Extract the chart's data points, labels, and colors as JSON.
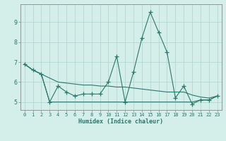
{
  "xlabel": "Humidex (Indice chaleur)",
  "x": [
    0,
    1,
    2,
    3,
    4,
    5,
    6,
    7,
    8,
    9,
    10,
    11,
    12,
    13,
    14,
    15,
    16,
    17,
    18,
    19,
    20,
    21,
    22,
    23
  ],
  "line1": [
    6.9,
    6.6,
    6.4,
    5.0,
    5.8,
    5.5,
    5.3,
    5.4,
    5.4,
    5.4,
    6.0,
    7.3,
    5.0,
    6.5,
    8.2,
    9.5,
    8.5,
    7.5,
    5.2,
    5.8,
    4.9,
    5.1,
    5.1,
    5.3
  ],
  "line2": [
    6.9,
    6.6,
    6.4,
    5.0,
    5.0,
    5.0,
    5.0,
    5.0,
    5.0,
    5.0,
    5.0,
    5.0,
    5.0,
    5.0,
    5.0,
    5.0,
    5.0,
    5.0,
    5.0,
    5.0,
    5.0,
    5.1,
    5.1,
    5.3
  ],
  "line3": [
    6.9,
    6.6,
    6.4,
    6.2,
    6.0,
    5.95,
    5.9,
    5.85,
    5.85,
    5.8,
    5.8,
    5.75,
    5.75,
    5.7,
    5.65,
    5.6,
    5.55,
    5.5,
    5.5,
    5.5,
    5.35,
    5.25,
    5.2,
    5.3
  ],
  "ylim": [
    4.6,
    9.9
  ],
  "yticks": [
    5,
    6,
    7,
    8,
    9
  ],
  "line_color": "#2a7a6a",
  "bg_color": "#d4eeea",
  "grid_color": "#aed4cc",
  "marker": "+",
  "markersize": 4,
  "lw": 0.8
}
